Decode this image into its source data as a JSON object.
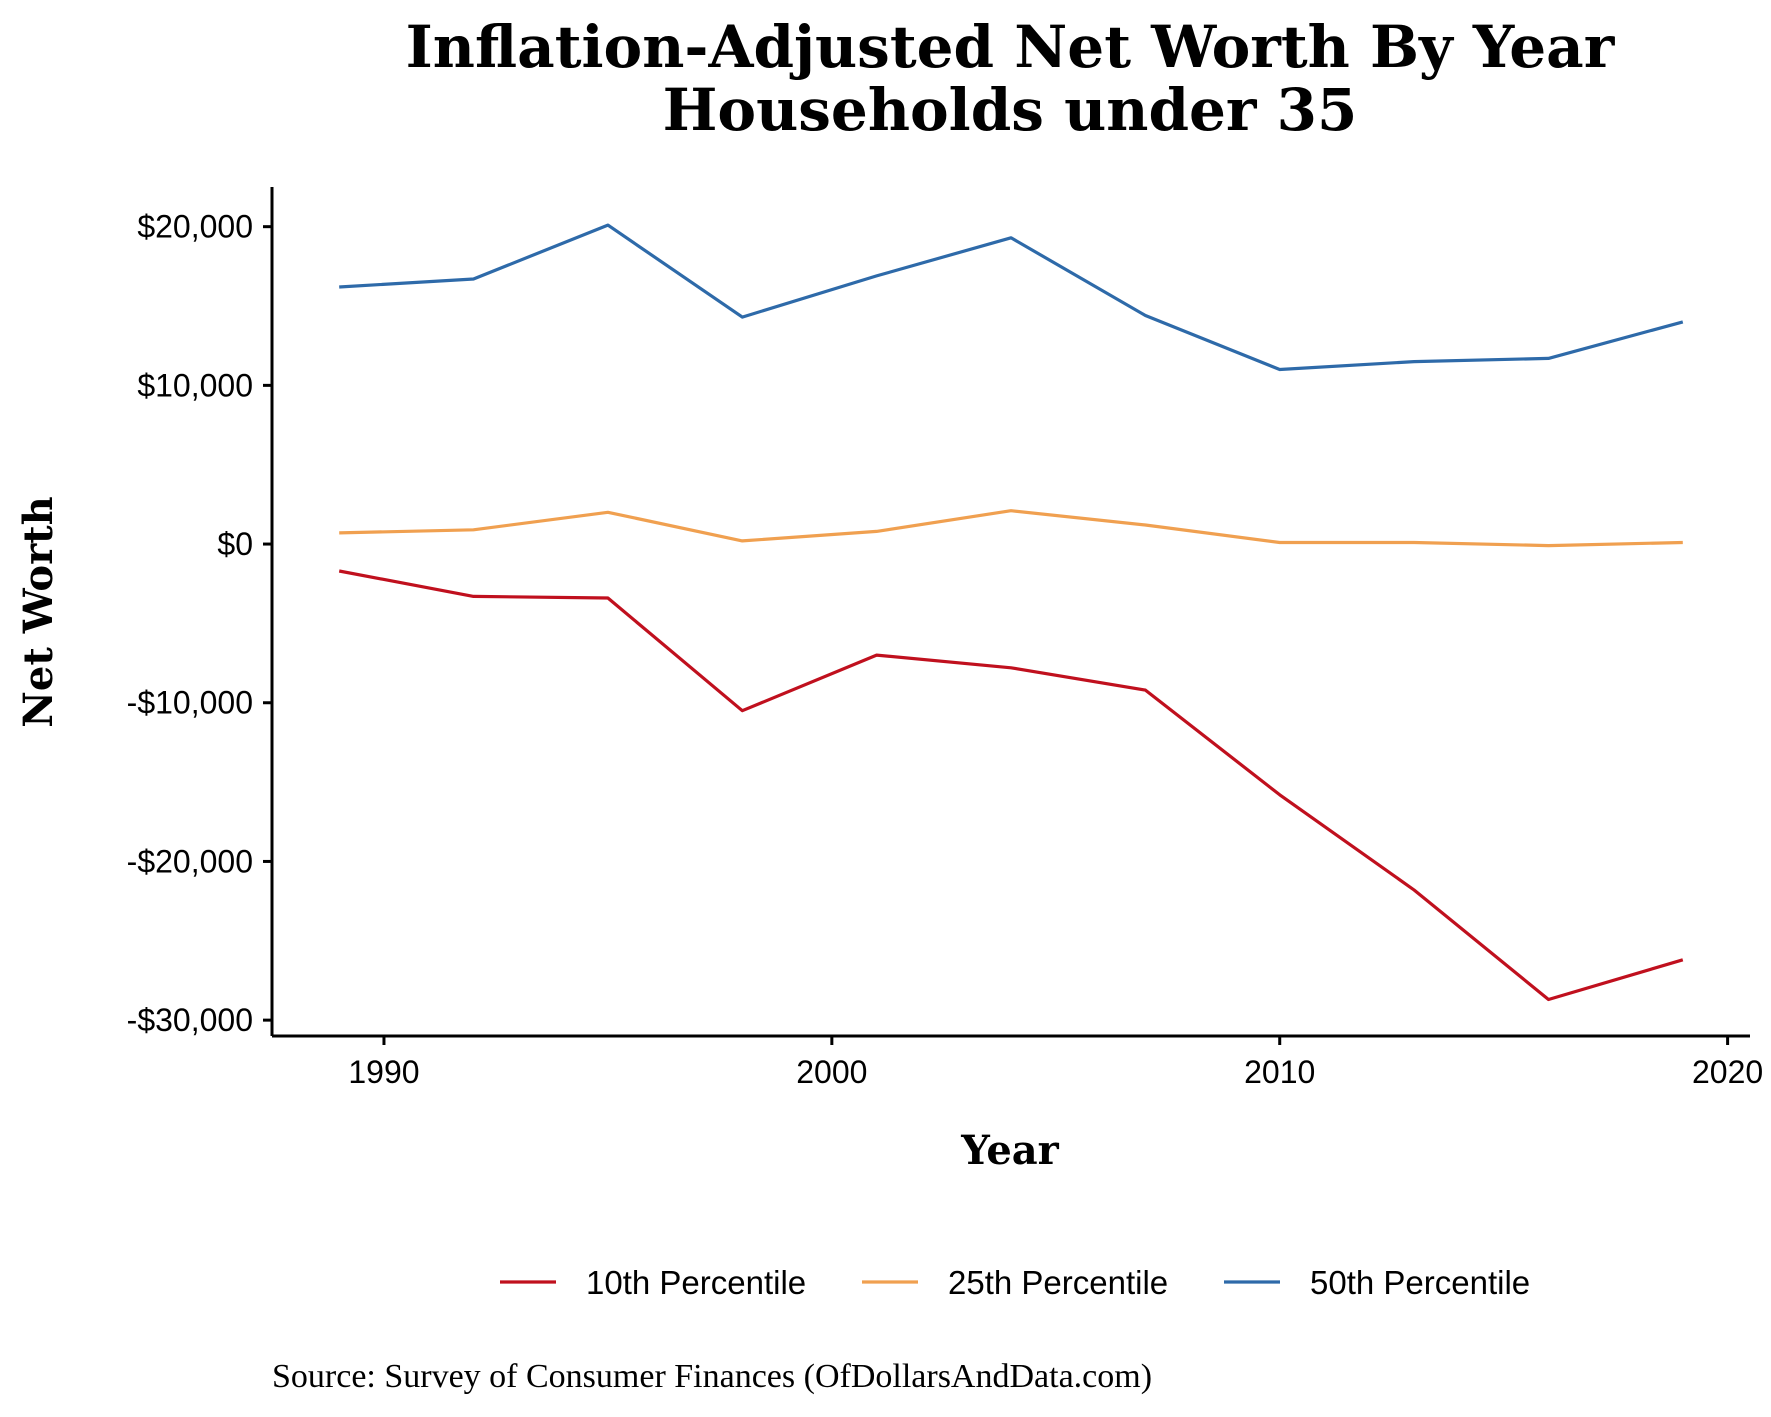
{
  "chart_data": {
    "type": "line",
    "title_line1": "Inflation-Adjusted Net Worth By Year",
    "title_line2": "Households under 35",
    "xlabel": "Year",
    "ylabel": "Net Worth",
    "xlim": [
      1987.5,
      2020.5
    ],
    "ylim": [
      -31000,
      22500
    ],
    "x_ticks": [
      1990,
      2000,
      2010,
      2020
    ],
    "y_ticks": [
      20000,
      10000,
      0,
      -10000,
      -20000,
      -30000
    ],
    "y_tick_labels": [
      "$20,000",
      "$10,000",
      "$0",
      "-$10,000",
      "-$20,000",
      "-$30,000"
    ],
    "x": [
      1989,
      1992,
      1995,
      1998,
      2001,
      2004,
      2007,
      2010,
      2013,
      2016,
      2019
    ],
    "series": [
      {
        "name": "10th Percentile",
        "color": "#c0101e",
        "values": [
          -1700,
          -3300,
          -3400,
          -10500,
          -7000,
          -7800,
          -9200,
          -15800,
          -21800,
          -28700,
          -26200
        ]
      },
      {
        "name": "25th Percentile",
        "color": "#f0a050",
        "values": [
          700,
          900,
          2000,
          200,
          800,
          2100,
          1200,
          100,
          100,
          -100,
          100
        ]
      },
      {
        "name": "50th Percentile",
        "color": "#2e6aa9",
        "values": [
          16200,
          16700,
          20100,
          14300,
          16900,
          19300,
          14400,
          11000,
          11500,
          11700,
          14000
        ]
      }
    ],
    "legend_position": "bottom",
    "grid": false
  },
  "caption": "Source:  Survey of Consumer Finances (OfDollarsAndData.com)"
}
